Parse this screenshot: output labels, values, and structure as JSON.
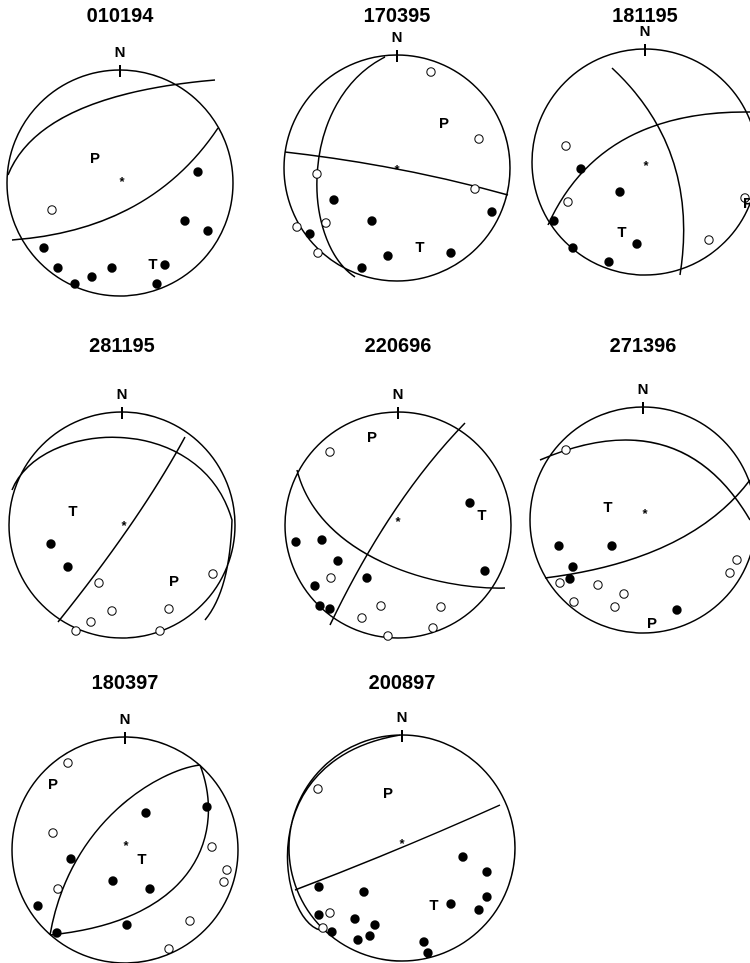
{
  "panels": [
    {
      "title": "010194",
      "north": "N",
      "p": "P",
      "t": "T",
      "star": "*"
    },
    {
      "title": "170395",
      "north": "N",
      "p": "P",
      "t": "T",
      "star": "*"
    },
    {
      "title": "181195",
      "north": "N",
      "p": "P",
      "t": "T",
      "star": "*"
    },
    {
      "title": "281195",
      "north": "N",
      "p": "P",
      "t": "T",
      "star": "*"
    },
    {
      "title": "220696",
      "north": "N",
      "p": "P",
      "t": "T",
      "star": "*"
    },
    {
      "title": "271396",
      "north": "N",
      "p": "P",
      "t": "T",
      "star": "*"
    },
    {
      "title": "180397",
      "north": "N",
      "p": "P",
      "t": "T",
      "star": "*"
    },
    {
      "title": "200897",
      "north": "N",
      "p": "P",
      "t": "T",
      "star": "*"
    }
  ]
}
